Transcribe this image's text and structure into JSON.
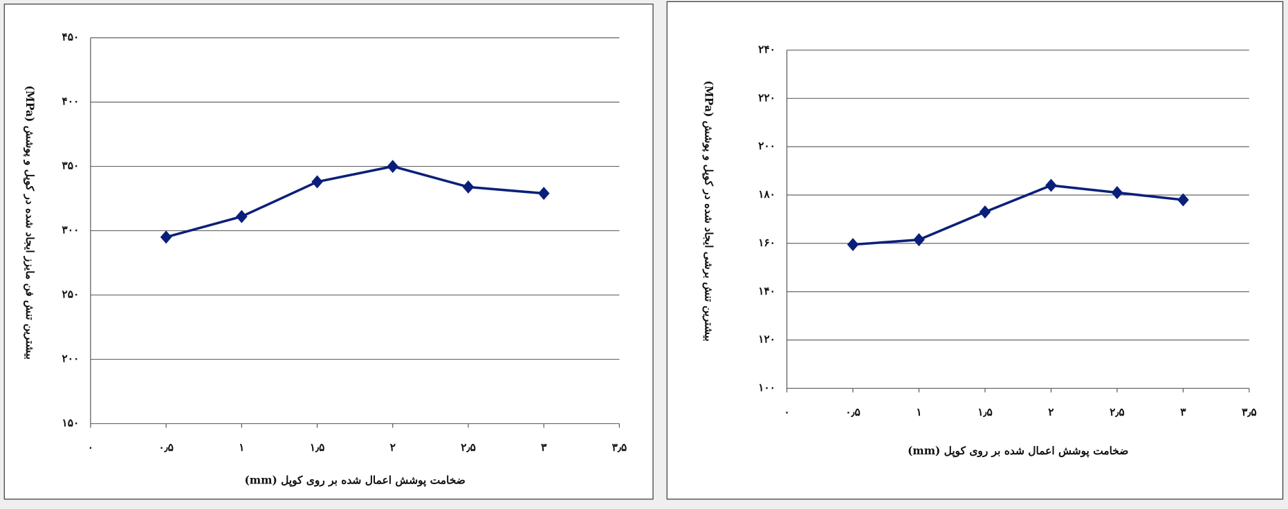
{
  "chart_data": [
    {
      "type": "line",
      "y_label": "بیشترین تنش فن مایزز ایجاد شده در کوپل و پوشش (MPa)",
      "x_label": "ضخامت پوشش اعمال شده بر روی کوپل (mm)",
      "x": [
        0.5,
        1,
        1.5,
        2,
        2.5,
        3
      ],
      "values": [
        295,
        311,
        338,
        350,
        334,
        329
      ],
      "color": "#0a1f7a",
      "xlim": [
        0,
        3.5
      ],
      "xticks": [
        {
          "value": 0,
          "label": "۰"
        },
        {
          "value": 0.5,
          "label": "۰٫۵"
        },
        {
          "value": 1,
          "label": "۱"
        },
        {
          "value": 1.5,
          "label": "۱٫۵"
        },
        {
          "value": 2,
          "label": "۲"
        },
        {
          "value": 2.5,
          "label": "۲٫۵"
        },
        {
          "value": 3,
          "label": "۳"
        },
        {
          "value": 3.5,
          "label": "۳٫۵"
        }
      ],
      "ylim": [
        150,
        450
      ],
      "yticks": [
        {
          "value": 150,
          "label": "۱۵۰"
        },
        {
          "value": 200,
          "label": "۲۰۰"
        },
        {
          "value": 250,
          "label": "۲۵۰"
        },
        {
          "value": 300,
          "label": "۳۰۰"
        },
        {
          "value": 350,
          "label": "۳۵۰"
        },
        {
          "value": 400,
          "label": "۴۰۰"
        },
        {
          "value": 450,
          "label": "۴۵۰"
        }
      ],
      "grid": true
    },
    {
      "type": "line",
      "y_label": "بیشترین تنش برشی ایجاد شده در کوپل و پوشش (MPa)",
      "x_label": "ضخامت پوشش اعمال شده بر روی کوپل (mm)",
      "x": [
        0.5,
        1,
        1.5,
        2,
        2.5,
        3
      ],
      "values": [
        159.5,
        161.5,
        173,
        184,
        181,
        178
      ],
      "color": "#0a1f7a",
      "xlim": [
        0,
        3.5
      ],
      "xticks": [
        {
          "value": 0,
          "label": "۰"
        },
        {
          "value": 0.5,
          "label": "۰٫۵"
        },
        {
          "value": 1,
          "label": "۱"
        },
        {
          "value": 1.5,
          "label": "۱٫۵"
        },
        {
          "value": 2,
          "label": "۲"
        },
        {
          "value": 2.5,
          "label": "۲٫۵"
        },
        {
          "value": 3,
          "label": "۳"
        },
        {
          "value": 3.5,
          "label": "۳٫۵"
        }
      ],
      "ylim": [
        100,
        240
      ],
      "yticks": [
        {
          "value": 100,
          "label": "۱۰۰"
        },
        {
          "value": 120,
          "label": "۱۲۰"
        },
        {
          "value": 140,
          "label": "۱۴۰"
        },
        {
          "value": 160,
          "label": "۱۶۰"
        },
        {
          "value": 180,
          "label": "۱۸۰"
        },
        {
          "value": 200,
          "label": "۲۰۰"
        },
        {
          "value": 220,
          "label": "۲۲۰"
        },
        {
          "value": 240,
          "label": "۲۴۰"
        }
      ],
      "grid": true
    }
  ]
}
